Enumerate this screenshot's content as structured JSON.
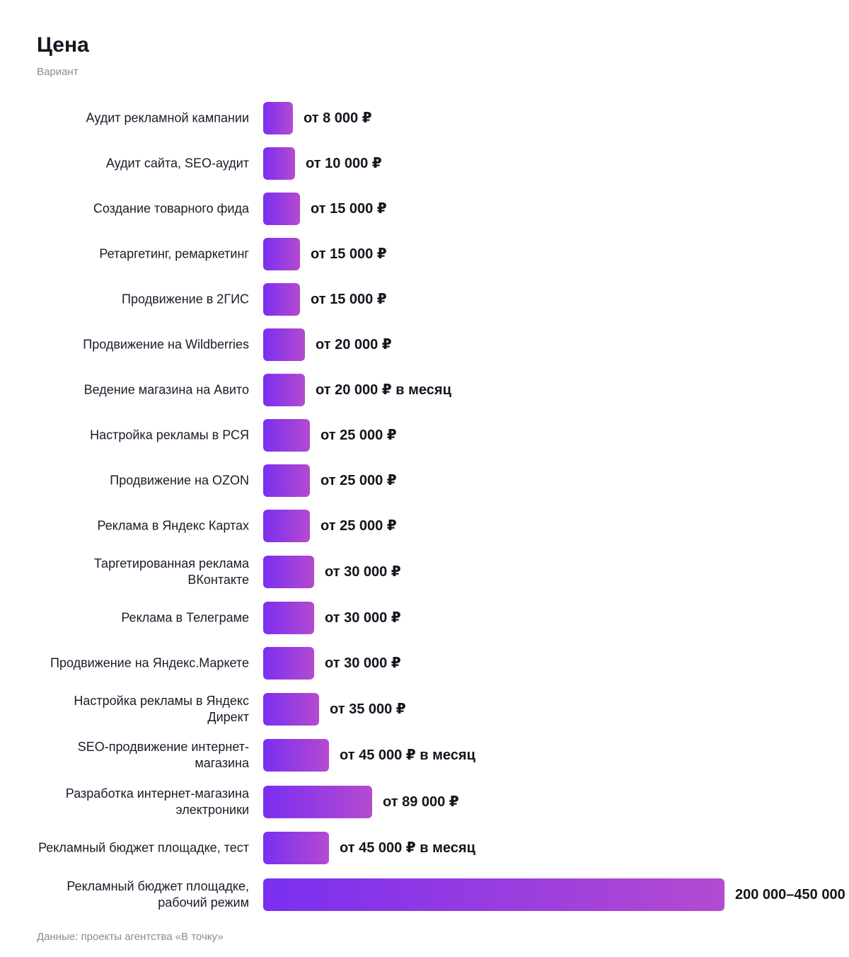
{
  "title": "Цена",
  "subtitle": "Вариант",
  "footer": "Данные: проекты агентства «В точку»",
  "chart_data": {
    "type": "bar",
    "orientation": "horizontal",
    "title": "Цена",
    "subtitle": "Вариант",
    "grid": false,
    "xlim": [
      0,
      450000
    ],
    "categories": [
      "Аудит рекламной кампании",
      "Аудит сайта, SEO-аудит",
      "Создание товарного фида",
      "Ретаргетинг, ремаркетинг",
      "Продвижение в 2ГИС",
      "Продвижение на Wildberries",
      "Ведение магазина на Авито",
      "Настройка рекламы в РСЯ",
      "Продвижение на OZON",
      "Реклама в Яндекс Картах",
      "Таргетированная реклама ВКонтакте",
      "Реклама в Телеграме",
      "Продвижение на Яндекс.Маркете",
      "Настройка рекламы в Яндекс Директ",
      "SEO-продвижение интернет-магазина",
      "Разработка интернет-магазина электроники",
      "Рекламный бюджет площадке, тест",
      "Рекламный бюджет площадке, рабочий режим"
    ],
    "values": [
      8000,
      10000,
      15000,
      15000,
      15000,
      20000,
      20000,
      25000,
      25000,
      25000,
      30000,
      30000,
      30000,
      35000,
      45000,
      89000,
      45000,
      450000
    ],
    "value_labels": [
      "от 8 000 ₽",
      "от 10 000 ₽",
      "от 15 000 ₽",
      "от 15 000 ₽",
      "от 15 000 ₽",
      "от 20 000 ₽",
      "от 20 000 ₽ в месяц",
      "от 25 000 ₽",
      "от 25 000 ₽",
      "от 25 000 ₽",
      "от 30 000 ₽",
      "от 30 000 ₽",
      "от 30 000 ₽",
      "от 35 000 ₽",
      "от 45 000 ₽ в месяц",
      "от 89 000 ₽",
      "от 45 000 ₽ в месяц",
      "200 000–450 000"
    ],
    "bar_color_start": "#7a2ff0",
    "bar_color_end": "#b44ad0"
  }
}
